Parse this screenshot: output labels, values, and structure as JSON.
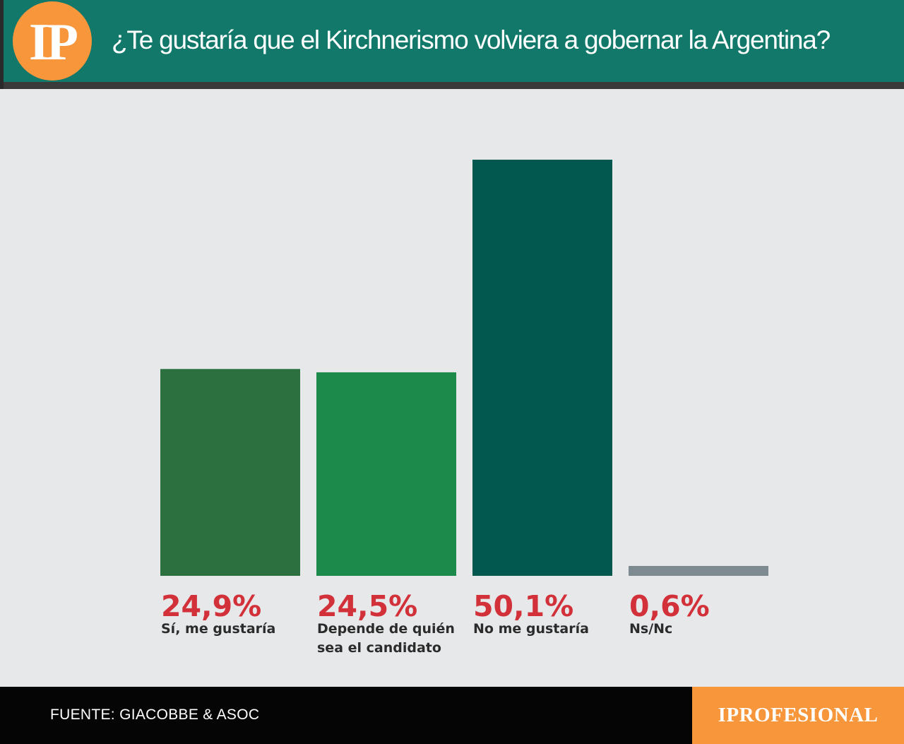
{
  "header": {
    "logo": "IP",
    "title": "¿Te gustaría que el Kirchnerismo volviera a gobernar la Argentina?"
  },
  "footer": {
    "source": "FUENTE: GIACOBBE & ASOC",
    "brand": "IPROFESIONAL"
  },
  "colors": {
    "header_bg": "#12786a",
    "accent_orange": "#f7963b",
    "value_label": "#d2313a",
    "category_label": "#2b2b2b",
    "background": "#e6e8ea"
  },
  "chart_data": {
    "type": "bar",
    "title": "¿Te gustaría que el Kirchnerismo volviera a gobernar la Argentina?",
    "categories": [
      "Sí, me gustaría",
      "Depende de quién sea el candidato",
      "No me gustaría",
      "Ns/Nc"
    ],
    "category_lines": [
      [
        "Sí, me gustaría"
      ],
      [
        "Depende de quién",
        "sea el candidato"
      ],
      [
        "No me gustaría"
      ],
      [
        "Ns/Nc"
      ]
    ],
    "values": [
      24.9,
      24.5,
      50.1,
      0.6
    ],
    "value_labels": [
      "24,9%",
      "24,5%",
      "50,1%",
      "0,6%"
    ],
    "bar_colors": [
      "#2c7040",
      "#1b8a4b",
      "#02574f",
      "#7d8a8f"
    ],
    "ylim": [
      0,
      50.1
    ],
    "grid": false,
    "legend": "none"
  }
}
